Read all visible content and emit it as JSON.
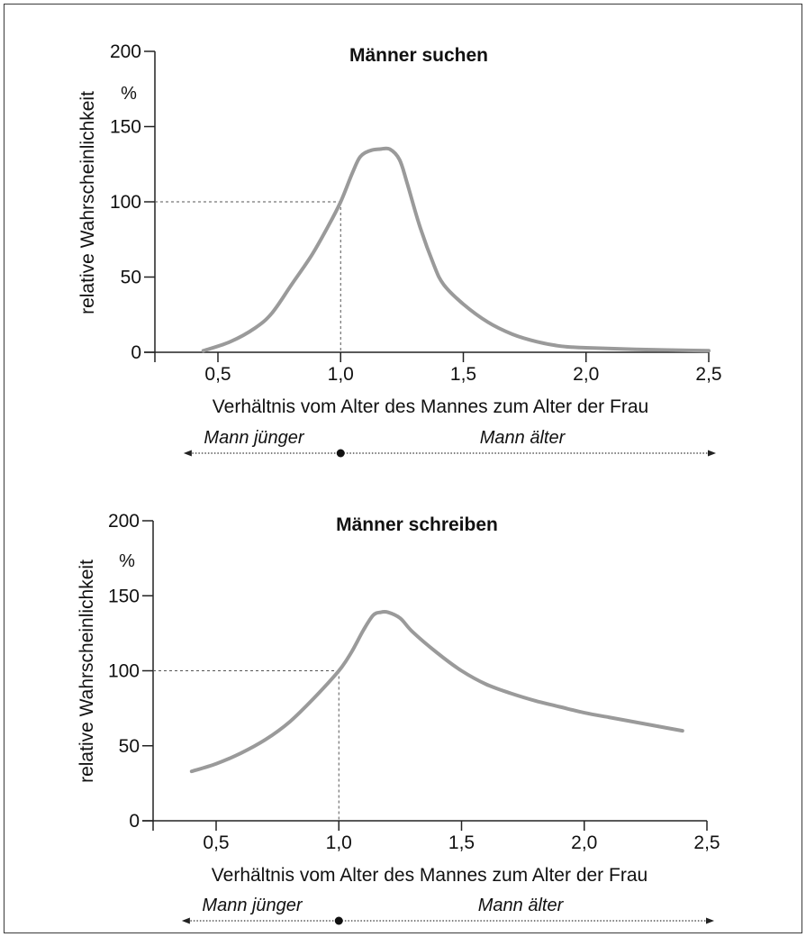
{
  "chart_data": [
    {
      "type": "line",
      "title": "Männer suchen",
      "xlabel": "Verhältnis vom Alter des Mannes zum Alter der Frau",
      "ylabel": "relative Wahrscheinlichkeit",
      "yunit": "%",
      "xlim": [
        0.25,
        2.5
      ],
      "ylim": [
        0,
        200
      ],
      "xticks": [
        0.5,
        1.0,
        1.5,
        2.0,
        2.5
      ],
      "xtick_labels": [
        "0,5",
        "1,0",
        "1,5",
        "2,0",
        "2,5"
      ],
      "yticks": [
        0,
        50,
        100,
        150,
        200
      ],
      "ytick_labels": [
        "0",
        "50",
        "100",
        "150",
        "200"
      ],
      "grid": false,
      "reference": {
        "x": 1.0,
        "y": 100
      },
      "annotations": {
        "left": "Mann jünger",
        "right": "Mann älter",
        "marker_x": 1.0
      },
      "series": [
        {
          "color": "#9a9a9a",
          "x": [
            0.44,
            0.55,
            0.65,
            0.72,
            0.8,
            0.88,
            0.95,
            1.0,
            1.05,
            1.08,
            1.12,
            1.16,
            1.2,
            1.24,
            1.27,
            1.32,
            1.38,
            1.42,
            1.5,
            1.6,
            1.7,
            1.8,
            1.9,
            2.0,
            2.2,
            2.5
          ],
          "y": [
            1,
            7,
            16,
            26,
            45,
            64,
            84,
            100,
            120,
            130,
            134,
            135,
            135,
            128,
            113,
            85,
            58,
            45,
            32,
            20,
            12,
            7,
            4,
            3,
            2,
            1
          ]
        }
      ]
    },
    {
      "type": "line",
      "title": "Männer schreiben",
      "xlabel": "Verhältnis vom Alter des Mannes zum Alter der Frau",
      "ylabel": "relative Wahrscheinlichkeit",
      "yunit": "%",
      "xlim": [
        0.25,
        2.5
      ],
      "ylim": [
        0,
        200
      ],
      "xticks": [
        0.5,
        1.0,
        1.5,
        2.0,
        2.5
      ],
      "xtick_labels": [
        "0,5",
        "1,0",
        "1,5",
        "2,0",
        "2,5"
      ],
      "yticks": [
        0,
        50,
        100,
        150,
        200
      ],
      "ytick_labels": [
        "0",
        "50",
        "100",
        "150",
        "200"
      ],
      "grid": false,
      "reference": {
        "x": 1.0,
        "y": 100
      },
      "annotations": {
        "left": "Mann jünger",
        "right": "Mann älter",
        "marker_x": 1.0
      },
      "series": [
        {
          "color": "#9a9a9a",
          "x": [
            0.4,
            0.5,
            0.6,
            0.7,
            0.8,
            0.9,
            1.0,
            1.05,
            1.1,
            1.14,
            1.17,
            1.2,
            1.25,
            1.3,
            1.4,
            1.5,
            1.6,
            1.7,
            1.8,
            1.9,
            2.0,
            2.1,
            2.2,
            2.3,
            2.4
          ],
          "y": [
            33,
            38,
            45,
            54,
            66,
            82,
            100,
            112,
            127,
            137,
            139,
            139,
            135,
            126,
            112,
            100,
            91,
            85,
            80,
            76,
            72,
            69,
            66,
            63,
            60
          ]
        }
      ]
    }
  ]
}
